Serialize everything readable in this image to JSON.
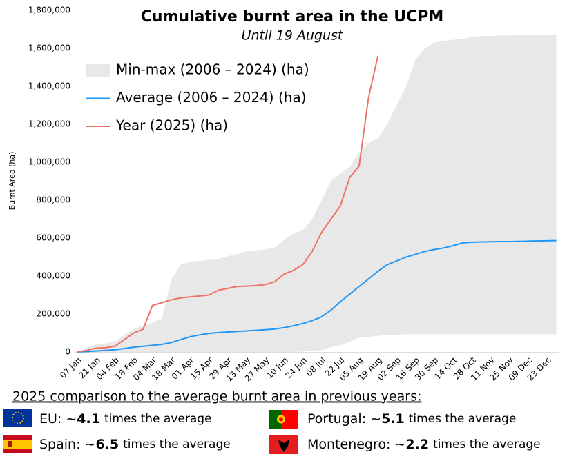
{
  "chart_data": {
    "type": "line",
    "title": "Cumulative burnt area in the UCPM",
    "subtitle": "Until 19 August",
    "y_label": "Burnt Area (ha)",
    "categories": [
      "07 Jan",
      null,
      "21 Jan",
      null,
      "04 Feb",
      null,
      "18 Feb",
      null,
      "04 Mar",
      null,
      "18 Mar",
      null,
      "01 Apr",
      null,
      "15 Apr",
      null,
      "29 Apr",
      null,
      "13 May",
      null,
      "27 May",
      null,
      "10 Jun",
      null,
      "24 Jun",
      null,
      "08 Jul",
      null,
      "22 Jul",
      null,
      "05 Aug",
      null,
      "19 Aug",
      null,
      "02 Sep",
      null,
      "16 Sep",
      null,
      "30 Sep",
      null,
      "14 Oct",
      null,
      "28 Oct",
      null,
      "11 Nov",
      null,
      "25 Nov",
      null,
      "09 Dec",
      null,
      "23 Dec",
      null
    ],
    "series": [
      {
        "name": "Min-max (2006 – 2024) (ha)",
        "type": "band",
        "color": "#e8e8e8",
        "low": [
          0,
          0,
          0,
          0,
          0,
          0,
          0,
          0,
          0,
          0,
          0,
          0,
          0,
          0,
          0,
          0,
          0,
          0,
          0,
          0,
          0,
          0,
          0,
          0,
          2000,
          5000,
          10000,
          25000,
          35000,
          55000,
          75000,
          80000,
          85000,
          90000,
          90000,
          93000,
          93000,
          93000,
          93000,
          93000,
          93000,
          93000,
          93000,
          93000,
          93000,
          93000,
          93000,
          93000,
          93000,
          93000,
          93000,
          93000
        ],
        "high": [
          0,
          20000,
          40000,
          45000,
          55000,
          90000,
          120000,
          140000,
          155000,
          175000,
          380000,
          460000,
          475000,
          480000,
          485000,
          490000,
          505000,
          515000,
          530000,
          535000,
          540000,
          550000,
          590000,
          625000,
          640000,
          700000,
          800000,
          900000,
          940000,
          975000,
          1050000,
          1100000,
          1125000,
          1200000,
          1300000,
          1400000,
          1540000,
          1600000,
          1630000,
          1640000,
          1645000,
          1650000,
          1660000,
          1665000,
          1665000,
          1668000,
          1668000,
          1670000,
          1670000,
          1670000,
          1670000,
          1670000
        ]
      },
      {
        "name": "Average (2006 – 2024) (ha)",
        "type": "line",
        "color": "#2196f3",
        "values": [
          0,
          2000,
          5000,
          8000,
          12000,
          18000,
          25000,
          30000,
          35000,
          40000,
          50000,
          65000,
          80000,
          90000,
          98000,
          102000,
          105000,
          108000,
          111000,
          114000,
          117000,
          121000,
          128000,
          138000,
          150000,
          165000,
          185000,
          220000,
          265000,
          305000,
          345000,
          385000,
          425000,
          460000,
          480000,
          500000,
          515000,
          530000,
          540000,
          548000,
          560000,
          575000,
          578000,
          580000,
          581000,
          582000,
          582000,
          583000,
          584000,
          585000,
          586000,
          587000
        ]
      },
      {
        "name": "Year (2025) (ha)",
        "type": "line",
        "color": "#f07163",
        "values": [
          0,
          8000,
          20000,
          22000,
          30000,
          65000,
          100000,
          120000,
          245000,
          260000,
          275000,
          285000,
          290000,
          295000,
          300000,
          325000,
          335000,
          345000,
          347000,
          350000,
          355000,
          370000,
          410000,
          430000,
          460000,
          530000,
          630000,
          700000,
          770000,
          920000,
          980000,
          1340000,
          1560000,
          null,
          null,
          null,
          null,
          null,
          null,
          null,
          null,
          null,
          null,
          null,
          null,
          null,
          null,
          null,
          null,
          null,
          null,
          null
        ]
      }
    ],
    "ylim": [
      0,
      1800000
    ],
    "yticks": [
      0,
      {
        "value": 200000,
        "label": "200,000"
      },
      {
        "value": 400000,
        "label": "400,000"
      },
      {
        "value": 600000,
        "label": "600,000"
      },
      {
        "value": 800000,
        "label": "800,000"
      },
      {
        "value": 1000000,
        "label": "1,000,000"
      },
      {
        "value": 1200000,
        "label": "1,200,000"
      },
      {
        "value": 1400000,
        "label": "1,400,000"
      },
      {
        "value": 1600000,
        "label": "1,600,000"
      },
      {
        "value": 1800000,
        "label": "1,800,000"
      }
    ],
    "grid": false,
    "legend_position": "upper left"
  },
  "comparison": {
    "heading": "2025 comparison to the average burnt area in previous years:",
    "items": [
      {
        "label": "EU: ~",
        "value": 4.1,
        "suffix": "times the average"
      },
      {
        "label": "Portugal: ~",
        "value": 5.1,
        "suffix": "times the average"
      },
      {
        "label": "Spain: ~",
        "value": 6.5,
        "suffix": "times the average"
      },
      {
        "label": "Montenegro: ~",
        "value": 2.2,
        "suffix": "times the average"
      }
    ]
  }
}
